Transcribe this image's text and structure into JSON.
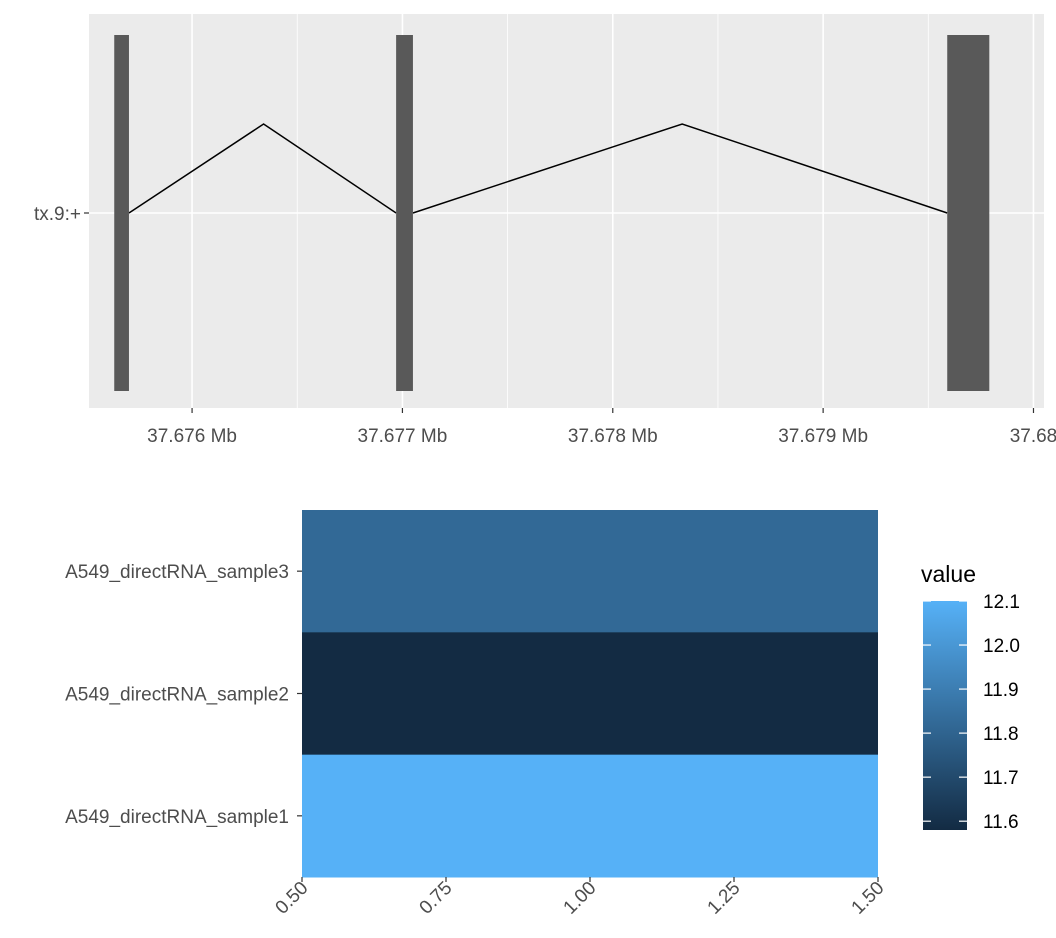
{
  "chart_data": [
    {
      "type": "gene-track",
      "title": "",
      "xlabel": "",
      "ylabel": "",
      "x_unit": "Mb",
      "xlim": [
        37.67551,
        37.68005
      ],
      "x_ticks": [
        37.676,
        37.677,
        37.678,
        37.679,
        37.68
      ],
      "x_tick_labels": [
        "37.676 Mb",
        "37.677 Mb",
        "37.678 Mb",
        "37.679 Mb",
        "37.68"
      ],
      "grid": true,
      "track": {
        "label": "tx.9:+",
        "strand": "+",
        "exons": [
          {
            "start": 37.67563,
            "end": 37.6757
          },
          {
            "start": 37.67697,
            "end": 37.67705
          },
          {
            "start": 37.67959,
            "end": 37.67979
          }
        ],
        "introns": [
          {
            "start": 37.6757,
            "apex": 37.67634,
            "end": 37.67697
          },
          {
            "start": 37.67705,
            "apex": 37.67833,
            "end": 37.67959
          }
        ],
        "exon_color": "#595959",
        "intron_color": "#000000"
      }
    },
    {
      "type": "heatmap",
      "title": "",
      "xlabel": "",
      "ylabel": "",
      "xlim": [
        0.5,
        1.5
      ],
      "x_ticks": [
        0.5,
        0.75,
        1.0,
        1.25,
        1.5
      ],
      "x_tick_labels": [
        "0.50",
        "0.75",
        "1.00",
        "1.25",
        "1.50"
      ],
      "rows": [
        {
          "name": "A549_directRNA_sample3",
          "value": 11.82
        },
        {
          "name": "A549_directRNA_sample2",
          "value": 11.58
        },
        {
          "name": "A549_directRNA_sample1",
          "value": 12.1
        }
      ],
      "legend": {
        "title": "value",
        "position": "right",
        "range": [
          11.58,
          12.1
        ],
        "ticks": [
          12.1,
          12.0,
          11.9,
          11.8,
          11.7,
          11.6
        ],
        "tick_labels": [
          "12.1",
          "12.0",
          "11.9",
          "11.8",
          "11.7",
          "11.6"
        ],
        "color_low": "#132B43",
        "color_high": "#56B1F7"
      }
    }
  ],
  "colors": {
    "panel_background": "#ebebeb",
    "grid_major": "#ffffff",
    "axis_text": "#4d4d4d",
    "legend_text": "#000000"
  }
}
